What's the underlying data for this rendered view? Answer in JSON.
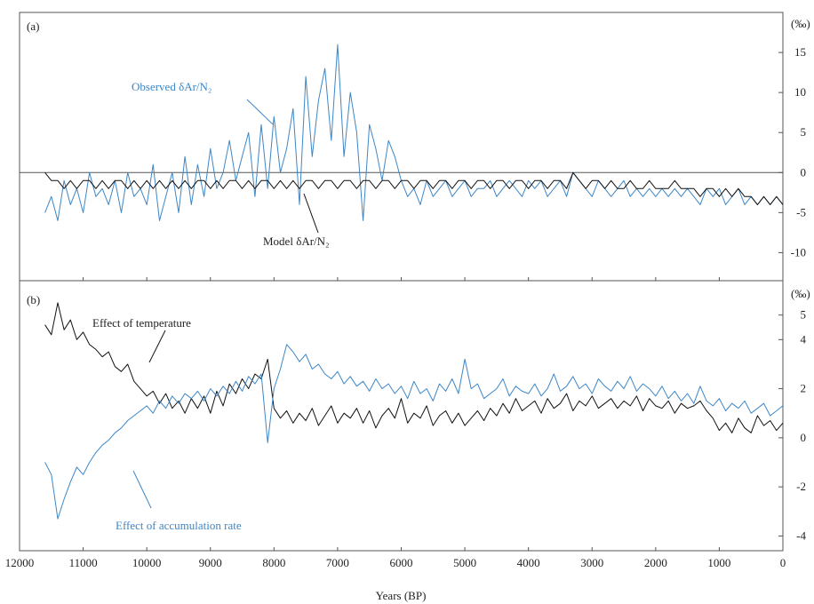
{
  "figure": {
    "xlabel": "Years (BP)",
    "x_ticks": [
      12000,
      11000,
      10000,
      9000,
      8000,
      7000,
      6000,
      5000,
      4000,
      3000,
      2000,
      1000,
      0
    ],
    "colors": {
      "observed": "#3d86c6",
      "model": "#111111",
      "axes": "#555555"
    }
  },
  "chart_data": [
    {
      "type": "line",
      "panel_label": "(a)",
      "y_unit": "(‰)",
      "xlim": [
        12000,
        0
      ],
      "ylim": [
        -13.5,
        20
      ],
      "y_ticks": [
        15,
        10,
        5,
        0,
        -5,
        -10
      ],
      "zero_line": true,
      "series": [
        {
          "name": "Observed δAr/N₂",
          "color": "#3d86c6",
          "x": [
            11600,
            11500,
            11400,
            11300,
            11200,
            11100,
            11000,
            10900,
            10800,
            10700,
            10600,
            10500,
            10400,
            10300,
            10200,
            10100,
            10000,
            9900,
            9800,
            9700,
            9600,
            9500,
            9400,
            9300,
            9200,
            9100,
            9000,
            8900,
            8800,
            8700,
            8600,
            8500,
            8400,
            8300,
            8200,
            8100,
            8000,
            7900,
            7800,
            7700,
            7600,
            7500,
            7400,
            7300,
            7200,
            7100,
            7000,
            6900,
            6800,
            6700,
            6600,
            6500,
            6400,
            6300,
            6200,
            6100,
            6000,
            5900,
            5800,
            5700,
            5600,
            5500,
            5400,
            5300,
            5200,
            5100,
            5000,
            4900,
            4800,
            4700,
            4600,
            4500,
            4400,
            4300,
            4200,
            4100,
            4000,
            3900,
            3800,
            3700,
            3600,
            3500,
            3400,
            3300,
            3200,
            3100,
            3000,
            2900,
            2800,
            2700,
            2600,
            2500,
            2400,
            2300,
            2200,
            2100,
            2000,
            1900,
            1800,
            1700,
            1600,
            1500,
            1400,
            1300,
            1200,
            1100,
            1000,
            900,
            800,
            700,
            600,
            500,
            400,
            300,
            200,
            100,
            0
          ],
          "y": [
            -5,
            -3,
            -6,
            -1,
            -4,
            -2,
            -5,
            0,
            -3,
            -2,
            -4,
            -1,
            -5,
            0,
            -3,
            -2,
            -4,
            1,
            -6,
            -3,
            0,
            -5,
            2,
            -4,
            1,
            -3,
            3,
            -2,
            0,
            4,
            -1,
            2,
            5,
            -3,
            6,
            -2,
            7,
            0,
            3,
            8,
            -4,
            12,
            2,
            9,
            13,
            4,
            16,
            2,
            10,
            5,
            -6,
            6,
            3,
            -1,
            4,
            2,
            -1,
            -3,
            -2,
            -4,
            -1,
            -3,
            -2,
            -1,
            -3,
            -2,
            -1,
            -3,
            -2,
            -2,
            -1,
            -3,
            -2,
            -1,
            -2,
            -3,
            -1,
            -2,
            -1,
            -3,
            -2,
            -1,
            -3,
            0,
            -1,
            -2,
            -3,
            -1,
            -2,
            -3,
            -2,
            -1,
            -3,
            -2,
            -3,
            -2,
            -3,
            -2,
            -3,
            -2,
            -3,
            -2,
            -3,
            -4,
            -2,
            -3,
            -2,
            -4,
            -3,
            -2,
            -4,
            -3,
            -4,
            -3,
            -4,
            -3,
            -4
          ]
        },
        {
          "name": "Model δAr/N₂",
          "color": "#111111",
          "x": [
            11600,
            11500,
            11400,
            11300,
            11200,
            11100,
            11000,
            10900,
            10800,
            10700,
            10600,
            10500,
            10400,
            10300,
            10200,
            10100,
            10000,
            9900,
            9800,
            9700,
            9600,
            9500,
            9400,
            9300,
            9200,
            9100,
            9000,
            8900,
            8800,
            8700,
            8600,
            8500,
            8400,
            8300,
            8200,
            8100,
            8000,
            7900,
            7800,
            7700,
            7600,
            7500,
            7400,
            7300,
            7200,
            7100,
            7000,
            6900,
            6800,
            6700,
            6600,
            6500,
            6400,
            6300,
            6200,
            6100,
            6000,
            5900,
            5800,
            5700,
            5600,
            5500,
            5400,
            5300,
            5200,
            5100,
            5000,
            4900,
            4800,
            4700,
            4600,
            4500,
            4400,
            4300,
            4200,
            4100,
            4000,
            3900,
            3800,
            3700,
            3600,
            3500,
            3400,
            3300,
            3200,
            3100,
            3000,
            2900,
            2800,
            2700,
            2600,
            2500,
            2400,
            2300,
            2200,
            2100,
            2000,
            1900,
            1800,
            1700,
            1600,
            1500,
            1400,
            1300,
            1200,
            1100,
            1000,
            900,
            800,
            700,
            600,
            500,
            400,
            300,
            200,
            100,
            0
          ],
          "y": [
            0,
            -1,
            -1,
            -2,
            -1,
            -2,
            -1,
            -1,
            -2,
            -1,
            -2,
            -1,
            -1,
            -2,
            -1,
            -2,
            -1,
            -2,
            -1,
            -2,
            -1,
            -2,
            -1,
            -2,
            -1,
            -1,
            -2,
            -1,
            -2,
            -1,
            -1,
            -2,
            -1,
            -2,
            -1,
            -1,
            -2,
            -1,
            -2,
            -1,
            -2,
            -1,
            -1,
            -2,
            -1,
            -1,
            -2,
            -1,
            -1,
            -2,
            -1,
            -1,
            -2,
            -1,
            -1,
            -2,
            -1,
            -1,
            -2,
            -1,
            -1,
            -2,
            -1,
            -1,
            -2,
            -1,
            -1,
            -2,
            -1,
            -1,
            -2,
            -1,
            -1,
            -2,
            -1,
            -1,
            -2,
            -1,
            -1,
            -2,
            -1,
            -1,
            -2,
            0,
            -1,
            -2,
            -1,
            -1,
            -2,
            -1,
            -2,
            -2,
            -1,
            -2,
            -2,
            -1,
            -2,
            -2,
            -2,
            -1,
            -2,
            -2,
            -2,
            -3,
            -2,
            -2,
            -3,
            -2,
            -3,
            -2,
            -3,
            -3,
            -4,
            -3,
            -4,
            -3,
            -4
          ]
        }
      ],
      "annotations": [
        {
          "text": "Observed δAr/N₂",
          "series": "Observed δAr/N₂"
        },
        {
          "text": "Model δAr/N₂",
          "series": "Model δAr/N₂"
        }
      ]
    },
    {
      "type": "line",
      "panel_label": "(b)",
      "y_unit": "(‰)",
      "xlim": [
        12000,
        0
      ],
      "ylim": [
        -4.6,
        6.4
      ],
      "y_ticks": [
        5,
        4,
        2,
        0,
        -2,
        -4
      ],
      "series": [
        {
          "name": "Effect of temperature",
          "color": "#111111",
          "x": [
            11600,
            11500,
            11400,
            11300,
            11200,
            11100,
            11000,
            10900,
            10800,
            10700,
            10600,
            10500,
            10400,
            10300,
            10200,
            10100,
            10000,
            9900,
            9800,
            9700,
            9600,
            9500,
            9400,
            9300,
            9200,
            9100,
            9000,
            8900,
            8800,
            8700,
            8600,
            8500,
            8400,
            8300,
            8200,
            8100,
            8000,
            7900,
            7800,
            7700,
            7600,
            7500,
            7400,
            7300,
            7200,
            7100,
            7000,
            6900,
            6800,
            6700,
            6600,
            6500,
            6400,
            6300,
            6200,
            6100,
            6000,
            5900,
            5800,
            5700,
            5600,
            5500,
            5400,
            5300,
            5200,
            5100,
            5000,
            4900,
            4800,
            4700,
            4600,
            4500,
            4400,
            4300,
            4200,
            4100,
            4000,
            3900,
            3800,
            3700,
            3600,
            3500,
            3400,
            3300,
            3200,
            3100,
            3000,
            2900,
            2800,
            2700,
            2600,
            2500,
            2400,
            2300,
            2200,
            2100,
            2000,
            1900,
            1800,
            1700,
            1600,
            1500,
            1400,
            1300,
            1200,
            1100,
            1000,
            900,
            800,
            700,
            600,
            500,
            400,
            300,
            200,
            100,
            0
          ],
          "y": [
            4.6,
            4.2,
            5.5,
            4.4,
            4.8,
            4.0,
            4.3,
            3.8,
            3.6,
            3.3,
            3.5,
            2.9,
            2.7,
            3.0,
            2.3,
            2.0,
            1.7,
            1.9,
            1.4,
            1.8,
            1.2,
            1.5,
            1.0,
            1.6,
            1.2,
            1.7,
            1.0,
            1.9,
            1.3,
            2.2,
            1.8,
            2.4,
            2.0,
            2.6,
            2.4,
            3.2,
            1.2,
            0.8,
            1.1,
            0.6,
            1.0,
            0.7,
            1.2,
            0.5,
            0.9,
            1.3,
            0.6,
            1.0,
            0.8,
            1.2,
            0.6,
            1.1,
            0.4,
            0.9,
            1.2,
            0.8,
            1.6,
            0.6,
            1.0,
            0.8,
            1.3,
            0.5,
            0.9,
            1.1,
            0.6,
            1.0,
            0.5,
            0.8,
            1.1,
            0.7,
            1.2,
            0.9,
            1.4,
            1.0,
            1.6,
            1.1,
            1.3,
            1.5,
            1.0,
            1.6,
            1.2,
            1.4,
            1.8,
            1.1,
            1.5,
            1.3,
            1.7,
            1.2,
            1.4,
            1.6,
            1.2,
            1.5,
            1.3,
            1.7,
            1.1,
            1.6,
            1.3,
            1.2,
            1.5,
            1.0,
            1.4,
            1.2,
            1.3,
            1.5,
            1.1,
            0.8,
            0.3,
            0.6,
            0.2,
            0.8,
            0.4,
            0.2,
            0.9,
            0.5,
            0.7,
            0.3,
            0.6
          ]
        },
        {
          "name": "Effect of accumulation rate",
          "color": "#3d86c6",
          "x": [
            11600,
            11500,
            11400,
            11300,
            11200,
            11100,
            11000,
            10900,
            10800,
            10700,
            10600,
            10500,
            10400,
            10300,
            10200,
            10100,
            10000,
            9900,
            9800,
            9700,
            9600,
            9500,
            9400,
            9300,
            9200,
            9100,
            9000,
            8900,
            8800,
            8700,
            8600,
            8500,
            8400,
            8300,
            8200,
            8100,
            8000,
            7900,
            7800,
            7700,
            7600,
            7500,
            7400,
            7300,
            7200,
            7100,
            7000,
            6900,
            6800,
            6700,
            6600,
            6500,
            6400,
            6300,
            6200,
            6100,
            6000,
            5900,
            5800,
            5700,
            5600,
            5500,
            5400,
            5300,
            5200,
            5100,
            5000,
            4900,
            4800,
            4700,
            4600,
            4500,
            4400,
            4300,
            4200,
            4100,
            4000,
            3900,
            3800,
            3700,
            3600,
            3500,
            3400,
            3300,
            3200,
            3100,
            3000,
            2900,
            2800,
            2700,
            2600,
            2500,
            2400,
            2300,
            2200,
            2100,
            2000,
            1900,
            1800,
            1700,
            1600,
            1500,
            1400,
            1300,
            1200,
            1100,
            1000,
            900,
            800,
            700,
            600,
            500,
            400,
            300,
            200,
            100,
            0
          ],
          "y": [
            -1.0,
            -1.5,
            -3.3,
            -2.5,
            -1.8,
            -1.2,
            -1.5,
            -1.0,
            -0.6,
            -0.3,
            -0.1,
            0.2,
            0.4,
            0.7,
            0.9,
            1.1,
            1.3,
            1.0,
            1.5,
            1.2,
            1.7,
            1.4,
            1.8,
            1.6,
            1.9,
            1.5,
            2.0,
            1.7,
            2.1,
            1.8,
            2.3,
            1.9,
            2.5,
            2.2,
            2.6,
            -0.2,
            2.0,
            2.8,
            3.8,
            3.5,
            3.1,
            3.4,
            2.8,
            3.0,
            2.6,
            2.4,
            2.7,
            2.2,
            2.5,
            2.1,
            2.3,
            1.9,
            2.4,
            2.0,
            2.2,
            1.8,
            2.1,
            1.6,
            2.3,
            1.8,
            2.0,
            1.5,
            2.2,
            1.9,
            2.4,
            1.8,
            3.2,
            2.0,
            2.2,
            1.6,
            1.8,
            2.0,
            2.4,
            1.7,
            2.1,
            1.9,
            1.8,
            2.2,
            1.7,
            2.0,
            2.6,
            1.9,
            2.1,
            2.5,
            2.0,
            2.2,
            1.8,
            2.4,
            2.1,
            1.9,
            2.3,
            2.0,
            2.5,
            1.9,
            2.2,
            2.0,
            1.7,
            2.1,
            1.6,
            1.9,
            1.5,
            1.8,
            1.4,
            2.1,
            1.5,
            1.3,
            1.6,
            1.1,
            1.4,
            1.2,
            1.5,
            1.0,
            1.2,
            1.4,
            0.9,
            1.1,
            1.3
          ]
        }
      ],
      "annotations": [
        {
          "text": "Effect of temperature",
          "series": "Effect of temperature"
        },
        {
          "text": "Effect of accumulation rate",
          "series": "Effect of accumulation rate"
        }
      ]
    }
  ]
}
